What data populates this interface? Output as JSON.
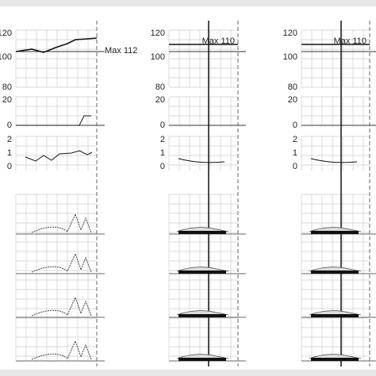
{
  "panels": [
    {
      "ticks_top": [
        "120",
        "100",
        "80"
      ],
      "ticks_mid": [
        "20",
        "0"
      ],
      "ticks_low": [
        "2",
        "1",
        "0"
      ],
      "max_label": "Max 112"
    },
    {
      "ticks_top": [
        "120",
        "100",
        "80"
      ],
      "ticks_mid": [
        "20",
        "0"
      ],
      "ticks_low": [
        "2",
        "1",
        "0"
      ],
      "max_label": "Max 110"
    },
    {
      "ticks_top": [
        "120",
        "100",
        "80"
      ],
      "ticks_mid": [
        "20",
        "0"
      ],
      "ticks_low": [
        "2",
        "1",
        "0"
      ],
      "max_label": "Max 110"
    }
  ]
}
